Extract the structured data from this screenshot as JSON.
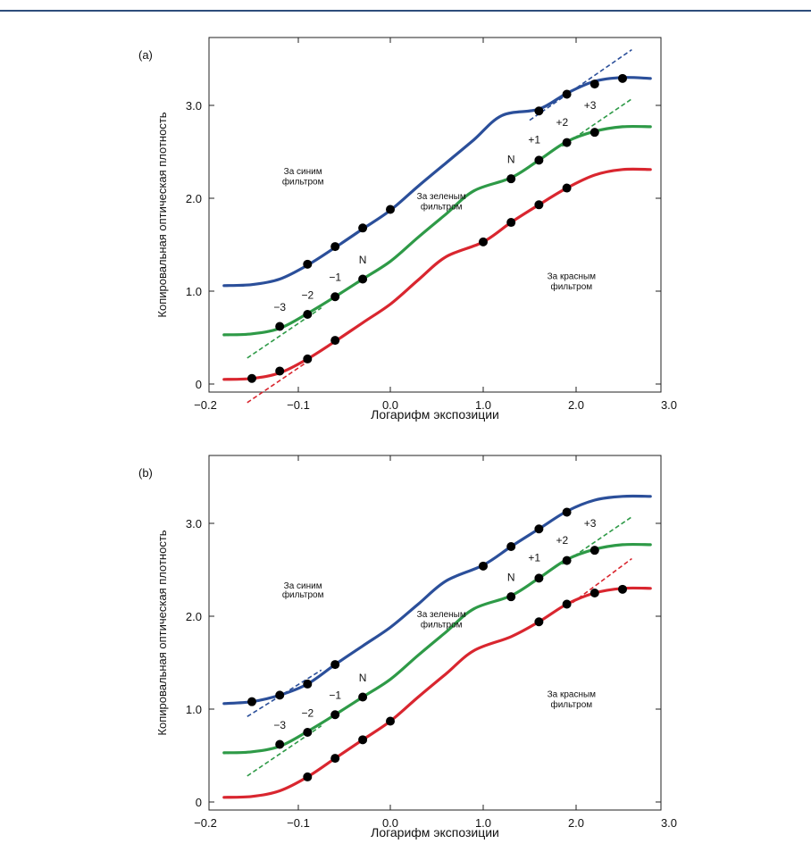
{
  "chart_data": [
    {
      "type": "line",
      "panel_label": "(a)",
      "xlabel": "Логарифм экспозиции",
      "ylabel": "Копировальная оптическая плотность",
      "xlim": [
        -0.2,
        3.0
      ],
      "ylim": [
        -0.05,
        3.6
      ],
      "x_ticks": [
        {
          "value": -0.2,
          "label": "−0.2"
        },
        {
          "value": -0.1,
          "label": "−0.1"
        },
        {
          "value": 0.0,
          "label": "0.0"
        },
        {
          "value": 1.0,
          "label": "1.0"
        },
        {
          "value": 2.0,
          "label": "2.0"
        },
        {
          "value": 3.0,
          "label": "3.0"
        }
      ],
      "y_ticks": [
        {
          "value": 0,
          "label": "0"
        },
        {
          "value": 1.0,
          "label": "1.0"
        },
        {
          "value": 2.0,
          "label": "2.0"
        },
        {
          "value": 3.0,
          "label": "3.0"
        }
      ],
      "grid": false,
      "series": [
        {
          "name": "За синим фильтром",
          "color": "#2b4f9a",
          "curve": [
            [
              -0.18,
              1.06
            ],
            [
              -0.15,
              1.07
            ],
            [
              -0.12,
              1.13
            ],
            [
              -0.09,
              1.28
            ],
            [
              -0.06,
              1.47
            ],
            [
              -0.03,
              1.67
            ],
            [
              0.0,
              1.87
            ],
            [
              0.3,
              2.13
            ],
            [
              0.6,
              2.38
            ],
            [
              0.9,
              2.63
            ],
            [
              1.2,
              2.89
            ],
            [
              1.6,
              2.96
            ],
            [
              1.9,
              3.13
            ],
            [
              2.2,
              3.26
            ],
            [
              2.5,
              3.3
            ],
            [
              2.8,
              3.29
            ]
          ],
          "points": [
            [
              -0.09,
              1.29
            ],
            [
              -0.06,
              1.48
            ],
            [
              -0.03,
              1.68
            ],
            [
              0.0,
              1.88
            ],
            [
              1.6,
              2.94
            ],
            [
              1.9,
              3.12
            ],
            [
              2.2,
              3.23
            ],
            [
              2.5,
              3.29
            ]
          ],
          "tangent": [
            [
              1.5,
              2.84
            ],
            [
              2.6,
              3.6
            ]
          ]
        },
        {
          "name": "За зеленым фильтром",
          "color": "#2e9a47",
          "curve": [
            [
              -0.18,
              0.53
            ],
            [
              -0.15,
              0.54
            ],
            [
              -0.12,
              0.6
            ],
            [
              -0.09,
              0.76
            ],
            [
              -0.06,
              0.94
            ],
            [
              -0.03,
              1.13
            ],
            [
              0.0,
              1.32
            ],
            [
              0.3,
              1.58
            ],
            [
              0.6,
              1.83
            ],
            [
              0.9,
              2.08
            ],
            [
              1.3,
              2.22
            ],
            [
              1.6,
              2.41
            ],
            [
              1.9,
              2.61
            ],
            [
              2.2,
              2.72
            ],
            [
              2.5,
              2.77
            ],
            [
              2.8,
              2.77
            ]
          ],
          "points": [
            [
              -0.12,
              0.62
            ],
            [
              -0.09,
              0.75
            ],
            [
              -0.06,
              0.94
            ],
            [
              -0.03,
              1.13
            ],
            [
              1.3,
              2.21
            ],
            [
              1.6,
              2.41
            ],
            [
              1.9,
              2.6
            ],
            [
              2.2,
              2.71
            ]
          ],
          "tangent": [
            [
              -0.155,
              0.28
            ],
            [
              -0.075,
              0.82
            ]
          ],
          "tangent2": [
            [
              1.85,
              2.56
            ],
            [
              2.6,
              3.07
            ]
          ]
        },
        {
          "name": "За красным фильтром",
          "color": "#d9262f",
          "curve": [
            [
              -0.18,
              0.05
            ],
            [
              -0.15,
              0.06
            ],
            [
              -0.12,
              0.12
            ],
            [
              -0.09,
              0.27
            ],
            [
              -0.06,
              0.46
            ],
            [
              -0.03,
              0.66
            ],
            [
              0.0,
              0.86
            ],
            [
              0.3,
              1.12
            ],
            [
              0.6,
              1.37
            ],
            [
              1.0,
              1.53
            ],
            [
              1.3,
              1.74
            ],
            [
              1.6,
              1.93
            ],
            [
              1.9,
              2.11
            ],
            [
              2.2,
              2.25
            ],
            [
              2.5,
              2.31
            ],
            [
              2.8,
              2.31
            ]
          ],
          "points": [
            [
              -0.15,
              0.06
            ],
            [
              -0.12,
              0.14
            ],
            [
              -0.09,
              0.27
            ],
            [
              -0.06,
              0.47
            ],
            [
              1.0,
              1.53
            ],
            [
              1.3,
              1.74
            ],
            [
              1.6,
              1.93
            ],
            [
              1.9,
              2.11
            ]
          ],
          "tangent": [
            [
              -0.155,
              -0.2
            ],
            [
              -0.09,
              0.24
            ]
          ]
        }
      ],
      "annotations": [
        {
          "text": "За синим",
          "x": -0.095,
          "y": 2.26,
          "color": "#2b4f9a"
        },
        {
          "text": "фильтром",
          "x": -0.095,
          "y": 2.15,
          "color": "#2b4f9a"
        },
        {
          "text": "За зеленым",
          "x": 0.55,
          "y": 1.99,
          "color": "#2e9a47"
        },
        {
          "text": "фильтром",
          "x": 0.55,
          "y": 1.88,
          "color": "#2e9a47"
        },
        {
          "text": "За красным",
          "x": 1.95,
          "y": 1.13,
          "color": "#d9262f"
        },
        {
          "text": "фильтром",
          "x": 1.95,
          "y": 1.02,
          "color": "#d9262f"
        },
        {
          "text": "N",
          "x": -0.03,
          "y": 1.3,
          "color": "#111111"
        },
        {
          "text": "−1",
          "x": -0.06,
          "y": 1.11,
          "color": "#111111"
        },
        {
          "text": "−2",
          "x": -0.09,
          "y": 0.92,
          "color": "#111111"
        },
        {
          "text": "−3",
          "x": -0.12,
          "y": 0.79,
          "color": "#111111"
        },
        {
          "text": "N",
          "x": 1.3,
          "y": 2.38,
          "color": "#111111"
        },
        {
          "text": "+1",
          "x": 1.55,
          "y": 2.59,
          "color": "#111111"
        },
        {
          "text": "+2",
          "x": 1.85,
          "y": 2.78,
          "color": "#111111"
        },
        {
          "text": "+3",
          "x": 2.15,
          "y": 2.96,
          "color": "#111111"
        }
      ]
    },
    {
      "type": "line",
      "panel_label": "(b)",
      "xlabel": "Логарифм экспозиции",
      "ylabel": "Копировальная оптическая плотность",
      "xlim": [
        -0.2,
        3.0
      ],
      "ylim": [
        -0.05,
        3.6
      ],
      "x_ticks": [
        {
          "value": -0.2,
          "label": "−0.2"
        },
        {
          "value": -0.1,
          "label": "−0.1"
        },
        {
          "value": 0.0,
          "label": "0.0"
        },
        {
          "value": 1.0,
          "label": "1.0"
        },
        {
          "value": 2.0,
          "label": "2.0"
        },
        {
          "value": 3.0,
          "label": "3.0"
        }
      ],
      "y_ticks": [
        {
          "value": 0,
          "label": "0"
        },
        {
          "value": 1.0,
          "label": "1.0"
        },
        {
          "value": 2.0,
          "label": "2.0"
        },
        {
          "value": 3.0,
          "label": "3.0"
        }
      ],
      "grid": false,
      "series": [
        {
          "name": "За синим фильтром",
          "color": "#2b4f9a",
          "curve": [
            [
              -0.18,
              1.06
            ],
            [
              -0.15,
              1.08
            ],
            [
              -0.12,
              1.15
            ],
            [
              -0.09,
              1.27
            ],
            [
              -0.06,
              1.48
            ],
            [
              -0.03,
              1.68
            ],
            [
              0.0,
              1.88
            ],
            [
              0.3,
              2.13
            ],
            [
              0.6,
              2.38
            ],
            [
              1.0,
              2.55
            ],
            [
              1.3,
              2.75
            ],
            [
              1.6,
              2.94
            ],
            [
              1.9,
              3.13
            ],
            [
              2.2,
              3.25
            ],
            [
              2.5,
              3.29
            ],
            [
              2.8,
              3.29
            ]
          ],
          "points": [
            [
              -0.15,
              1.08
            ],
            [
              -0.12,
              1.15
            ],
            [
              -0.09,
              1.27
            ],
            [
              -0.06,
              1.48
            ],
            [
              1.0,
              2.54
            ],
            [
              1.3,
              2.75
            ],
            [
              1.6,
              2.94
            ],
            [
              1.9,
              3.12
            ]
          ],
          "tangent": [
            [
              -0.155,
              0.92
            ],
            [
              -0.075,
              1.42
            ]
          ]
        },
        {
          "name": "За зеленым фильтром",
          "color": "#2e9a47",
          "curve": [
            [
              -0.18,
              0.53
            ],
            [
              -0.15,
              0.54
            ],
            [
              -0.12,
              0.6
            ],
            [
              -0.09,
              0.76
            ],
            [
              -0.06,
              0.94
            ],
            [
              -0.03,
              1.13
            ],
            [
              0.0,
              1.32
            ],
            [
              0.3,
              1.58
            ],
            [
              0.6,
              1.83
            ],
            [
              0.9,
              2.08
            ],
            [
              1.3,
              2.22
            ],
            [
              1.6,
              2.41
            ],
            [
              1.9,
              2.61
            ],
            [
              2.2,
              2.72
            ],
            [
              2.5,
              2.77
            ],
            [
              2.8,
              2.77
            ]
          ],
          "points": [
            [
              -0.12,
              0.62
            ],
            [
              -0.09,
              0.75
            ],
            [
              -0.06,
              0.94
            ],
            [
              -0.03,
              1.13
            ],
            [
              1.3,
              2.21
            ],
            [
              1.6,
              2.41
            ],
            [
              1.9,
              2.6
            ],
            [
              2.2,
              2.71
            ]
          ],
          "tangent": [
            [
              -0.155,
              0.28
            ],
            [
              -0.075,
              0.82
            ]
          ],
          "tangent2": [
            [
              1.85,
              2.56
            ],
            [
              2.6,
              3.07
            ]
          ]
        },
        {
          "name": "За красным фильтром",
          "color": "#d9262f",
          "curve": [
            [
              -0.18,
              0.05
            ],
            [
              -0.15,
              0.06
            ],
            [
              -0.12,
              0.12
            ],
            [
              -0.09,
              0.27
            ],
            [
              -0.06,
              0.47
            ],
            [
              -0.03,
              0.67
            ],
            [
              0.0,
              0.87
            ],
            [
              0.3,
              1.13
            ],
            [
              0.6,
              1.38
            ],
            [
              0.9,
              1.63
            ],
            [
              1.3,
              1.78
            ],
            [
              1.6,
              1.94
            ],
            [
              1.9,
              2.13
            ],
            [
              2.2,
              2.25
            ],
            [
              2.5,
              2.3
            ],
            [
              2.8,
              2.3
            ]
          ],
          "points": [
            [
              -0.09,
              0.27
            ],
            [
              -0.06,
              0.47
            ],
            [
              -0.03,
              0.67
            ],
            [
              0.0,
              0.87
            ],
            [
              1.6,
              1.94
            ],
            [
              1.9,
              2.13
            ],
            [
              2.2,
              2.25
            ],
            [
              2.5,
              2.29
            ]
          ],
          "tangent": [
            [
              1.9,
              2.1
            ],
            [
              2.6,
              2.62
            ]
          ]
        }
      ],
      "annotations": [
        {
          "text": "За синим",
          "x": -0.095,
          "y": 2.3,
          "color": "#2b4f9a"
        },
        {
          "text": "фильтром",
          "x": -0.095,
          "y": 2.2,
          "color": "#2b4f9a"
        },
        {
          "text": "За зеленым",
          "x": 0.55,
          "y": 1.99,
          "color": "#2e9a47"
        },
        {
          "text": "фильтром",
          "x": 0.55,
          "y": 1.88,
          "color": "#2e9a47"
        },
        {
          "text": "За красным",
          "x": 1.95,
          "y": 1.13,
          "color": "#d9262f"
        },
        {
          "text": "фильтром",
          "x": 1.95,
          "y": 1.02,
          "color": "#d9262f"
        },
        {
          "text": "N",
          "x": -0.03,
          "y": 1.3,
          "color": "#111111"
        },
        {
          "text": "−1",
          "x": -0.06,
          "y": 1.11,
          "color": "#111111"
        },
        {
          "text": "−2",
          "x": -0.09,
          "y": 0.92,
          "color": "#111111"
        },
        {
          "text": "−3",
          "x": -0.12,
          "y": 0.79,
          "color": "#111111"
        },
        {
          "text": "N",
          "x": 1.3,
          "y": 2.38,
          "color": "#111111"
        },
        {
          "text": "+1",
          "x": 1.55,
          "y": 2.59,
          "color": "#111111"
        },
        {
          "text": "+2",
          "x": 1.85,
          "y": 2.78,
          "color": "#111111"
        },
        {
          "text": "+3",
          "x": 2.15,
          "y": 2.96,
          "color": "#111111"
        }
      ]
    }
  ]
}
